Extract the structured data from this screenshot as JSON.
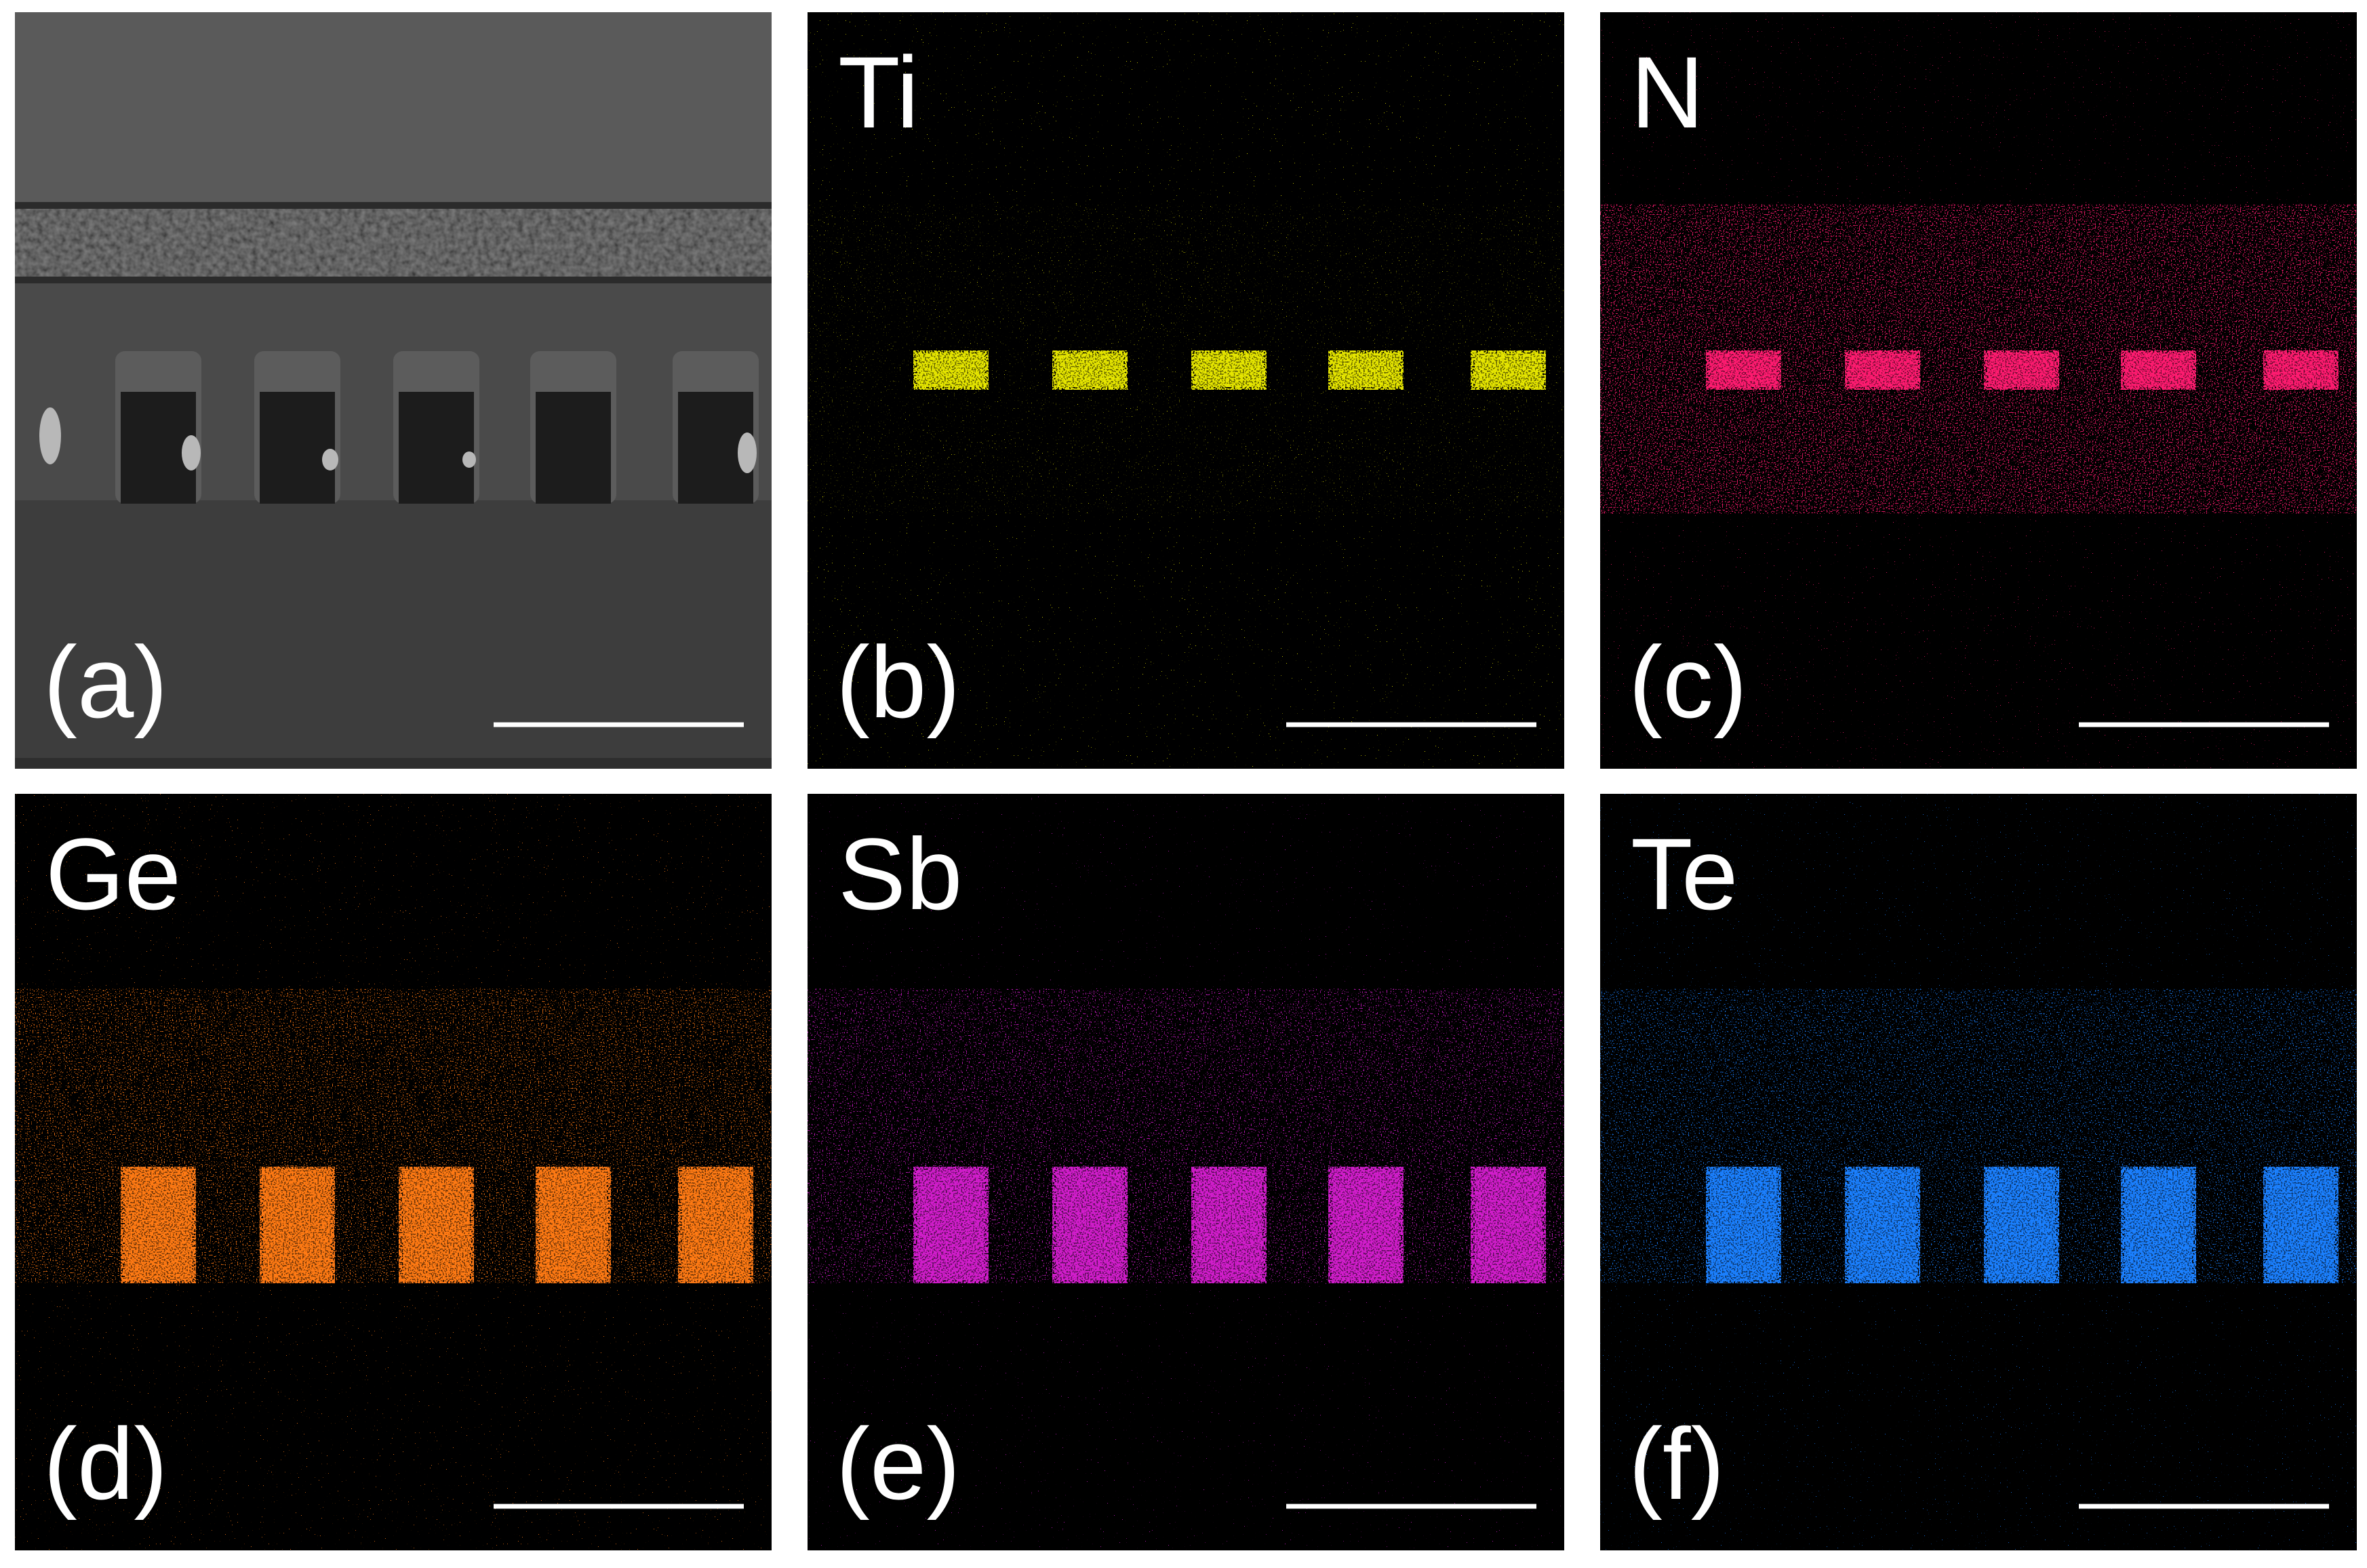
{
  "panels": [
    {
      "label": "(a)"
    },
    {
      "label": "(b)",
      "element": "Ti",
      "color": "#e6e600"
    },
    {
      "label": "(c)",
      "element": "N",
      "color": "#ff1a70"
    },
    {
      "label": "(d)",
      "element": "Ge",
      "color": "#ff7a12"
    },
    {
      "label": "(e)",
      "element": "Sb",
      "color": "#d21fcc"
    },
    {
      "label": "(f)",
      "element": "Te",
      "color": "#1a80ff"
    }
  ]
}
